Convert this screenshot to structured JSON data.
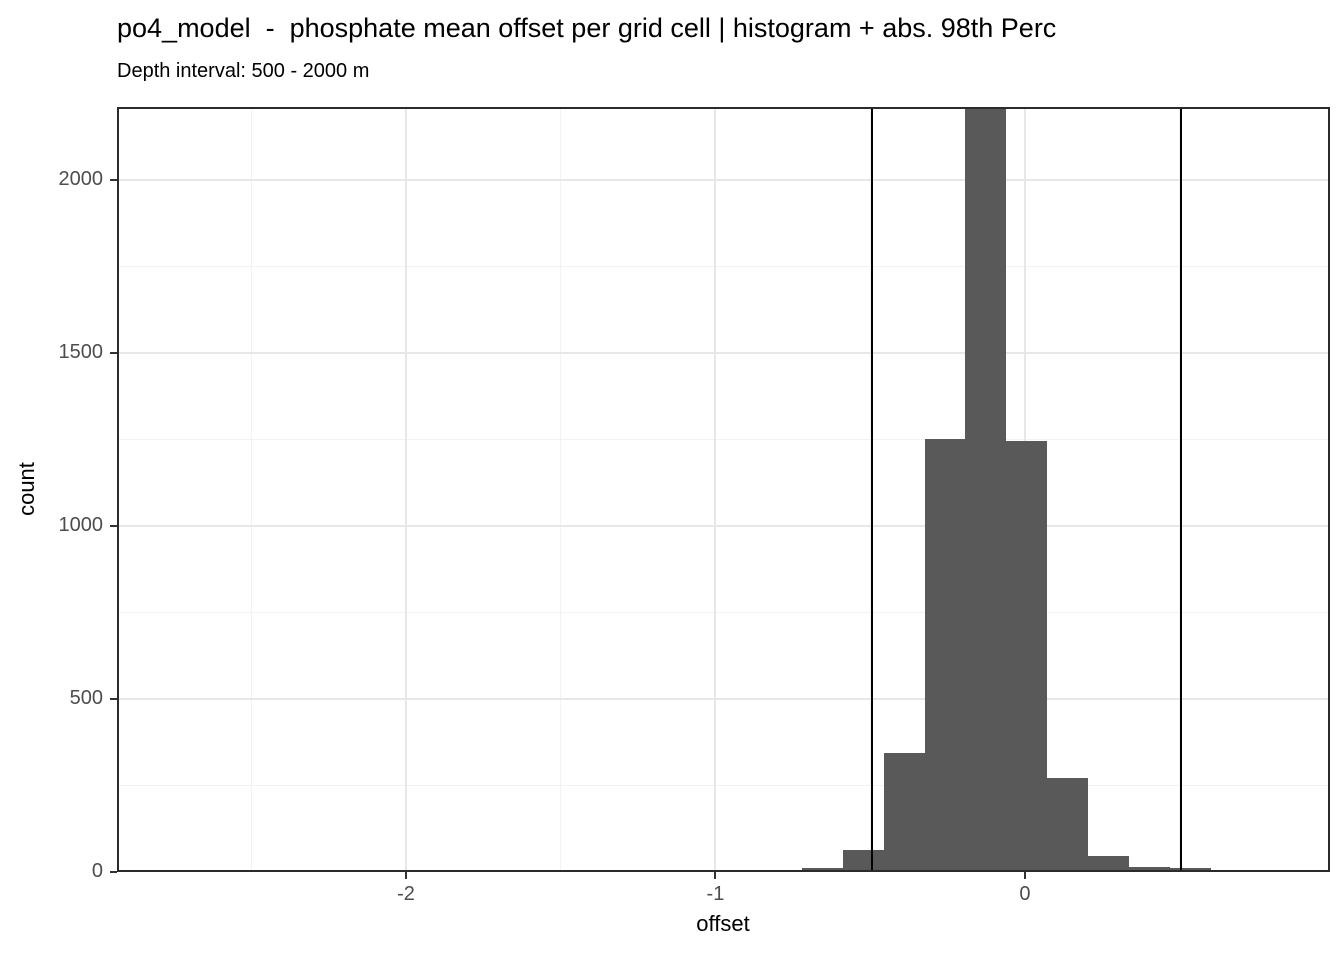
{
  "header": {
    "title": "po4_model  -  phosphate mean offset per grid cell | histogram + abs. 98th Perc",
    "subtitle": "Depth interval: 500 - 2000 m"
  },
  "chart_data": {
    "type": "bar",
    "subtype": "histogram",
    "title": "po4_model  -  phosphate mean offset per grid cell | histogram + abs. 98th Perc",
    "subtitle": "Depth interval: 500 - 2000 m",
    "xlabel": "offset",
    "ylabel": "count",
    "xlim": [
      -2.934,
      0.986
    ],
    "ylim": [
      0,
      2212
    ],
    "x_ticks": [
      -2,
      -1,
      0
    ],
    "y_ticks": [
      0,
      500,
      1000,
      1500,
      2000
    ],
    "x_minor_gridlines": [
      -2.5,
      -1.5,
      -0.5,
      0.5
    ],
    "y_minor_gridlines": [
      250,
      750,
      1250,
      1750
    ],
    "grid": true,
    "legend_position": "none",
    "binwidth": 0.132,
    "bars": [
      {
        "x0": -1.248,
        "x1": -1.116,
        "count": 4
      },
      {
        "x0": -0.852,
        "x1": -0.72,
        "count": 5
      },
      {
        "x0": -0.72,
        "x1": -0.588,
        "count": 13
      },
      {
        "x0": -0.588,
        "x1": -0.456,
        "count": 64
      },
      {
        "x0": -0.456,
        "x1": -0.324,
        "count": 345
      },
      {
        "x0": -0.324,
        "x1": -0.192,
        "count": 1252
      },
      {
        "x0": -0.192,
        "x1": -0.06,
        "count": 2400,
        "clipped_at_top": true
      },
      {
        "x0": -0.06,
        "x1": 0.072,
        "count": 1246
      },
      {
        "x0": 0.072,
        "x1": 0.204,
        "count": 272
      },
      {
        "x0": 0.204,
        "x1": 0.336,
        "count": 46
      },
      {
        "x0": 0.336,
        "x1": 0.468,
        "count": 14
      },
      {
        "x0": 0.468,
        "x1": 0.6,
        "count": 12
      },
      {
        "x0": 0.6,
        "x1": 0.732,
        "count": 6
      }
    ],
    "vlines": {
      "values": [
        -0.494,
        0.504
      ],
      "color": "#000000"
    },
    "colors": {
      "bar_fill": "#595959",
      "panel_border": "#2b2b2b",
      "grid_major": "#e7e7e7",
      "grid_minor": "#f2f2f2",
      "tick_label": "#4d4d4d",
      "axis_title": "#000000",
      "title": "#000000"
    }
  }
}
